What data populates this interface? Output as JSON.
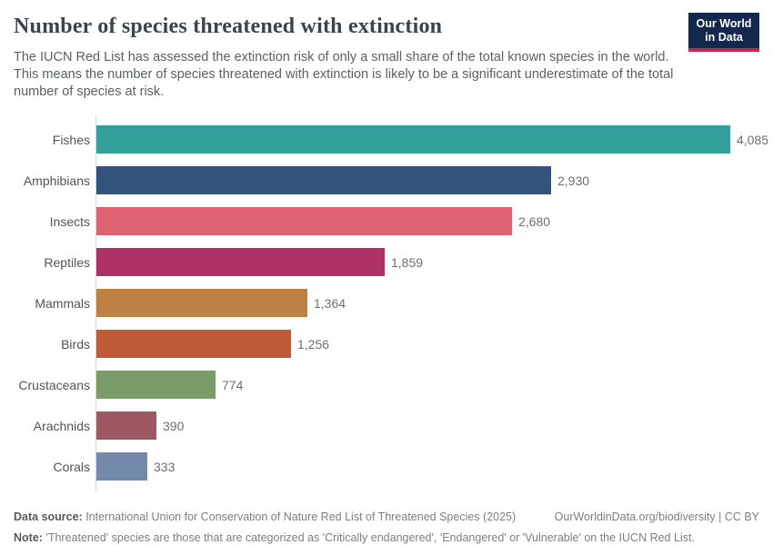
{
  "header": {
    "title": "Number of species threatened with extinction",
    "subtitle": "The IUCN Red List has assessed the extinction risk of only a small share of the total known species in the world. This means the number of species threatened with extinction is likely to be a significant underestimate of the total number of species at risk.",
    "logo": {
      "line1": "Our World",
      "line2": "in Data"
    }
  },
  "chart_data": {
    "type": "bar",
    "orientation": "horizontal",
    "title": "Number of species threatened with extinction",
    "categories": [
      "Fishes",
      "Amphibians",
      "Insects",
      "Reptiles",
      "Mammals",
      "Birds",
      "Crustaceans",
      "Arachnids",
      "Corals"
    ],
    "values": [
      4085,
      2930,
      2680,
      1859,
      1364,
      1256,
      774,
      390,
      333
    ],
    "value_labels": [
      "4,085",
      "2,930",
      "2,680",
      "1,859",
      "1,364",
      "1,256",
      "774",
      "390",
      "333"
    ],
    "bar_colors": [
      "#339f9a",
      "#33557b",
      "#de6272",
      "#ae3266",
      "#bf8143",
      "#c05b3a",
      "#799c69",
      "#9f5862",
      "#7389ac"
    ],
    "xlim": [
      0,
      4085
    ],
    "grid": false,
    "legend": "none",
    "xlabel": "",
    "ylabel": ""
  },
  "footer": {
    "source_label": "Data source:",
    "source_text": " International Union for Conservation of Nature Red List of Threatened Species (2025)",
    "attribution": "OurWorldinData.org/biodiversity | CC BY",
    "note_label": "Note:",
    "note_text": " 'Threatened' species are those that are categorized as 'Critically endangered', 'Endangered' or 'Vulnerable' on the IUCN Red List."
  },
  "colors": {
    "logo_bg": "#12294d",
    "logo_accent": "#cb2946",
    "axis": "#d4d7d9",
    "title_text": "#3a444c",
    "subtitle_text": "#5b6066"
  }
}
